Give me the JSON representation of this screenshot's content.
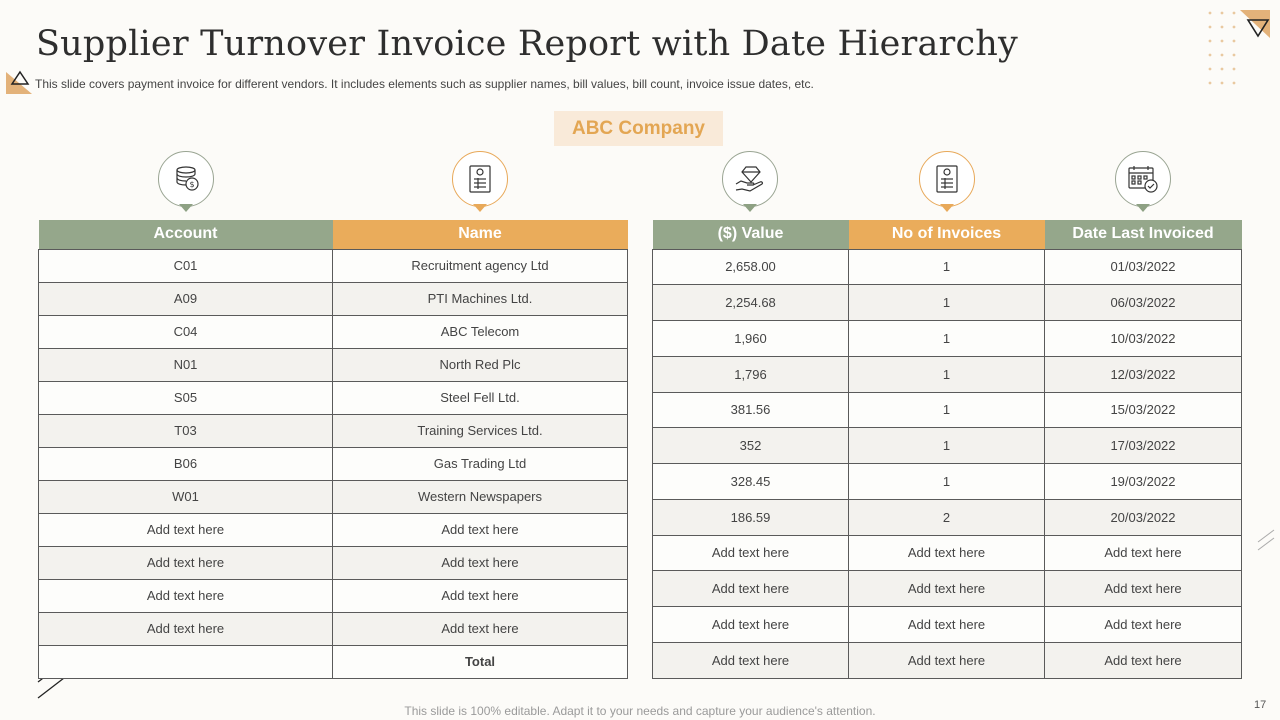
{
  "header": {
    "title": "Supplier Turnover Invoice Report with Date Hierarchy",
    "subtitle": "This slide covers payment invoice for different vendors. It includes elements such as supplier names, bill values, bill count, invoice issue dates, etc."
  },
  "company": "ABC Company",
  "icons": [
    "coins-dollar-icon",
    "invoice-document-icon",
    "hand-diamond-icon",
    "invoice-list-icon",
    "calendar-check-icon"
  ],
  "colors": {
    "green": "#95a78b",
    "orange": "#eaac5b",
    "company_bg": "#f9ead9",
    "company_text": "#e3a653"
  },
  "left_table": {
    "headers": [
      "Account",
      "Name"
    ],
    "rows": [
      [
        "C01",
        "Recruitment agency Ltd"
      ],
      [
        "A09",
        "PTI Machines Ltd."
      ],
      [
        "C04",
        "ABC Telecom"
      ],
      [
        "N01",
        "North Red Plc"
      ],
      [
        "S05",
        "Steel Fell Ltd."
      ],
      [
        "T03",
        "Training  Services Ltd."
      ],
      [
        "B06",
        "Gas Trading  Ltd"
      ],
      [
        "W01",
        "Western Newspapers"
      ],
      [
        "Add text here",
        "Add text here"
      ],
      [
        "Add text here",
        "Add text here"
      ],
      [
        "Add text here",
        "Add text here"
      ],
      [
        "Add text here",
        "Add text here"
      ]
    ],
    "total_label": "Total"
  },
  "right_table": {
    "headers": [
      "($) Value",
      "No of Invoices",
      "Date Last Invoiced"
    ],
    "rows": [
      [
        "2,658.00",
        "1",
        "01/03/2022"
      ],
      [
        "2,254.68",
        "1",
        "06/03/2022"
      ],
      [
        "1,960",
        "1",
        "10/03/2022"
      ],
      [
        "1,796",
        "1",
        "12/03/2022"
      ],
      [
        "381.56",
        "1",
        "15/03/2022"
      ],
      [
        "352",
        "1",
        "17/03/2022"
      ],
      [
        "328.45",
        "1",
        "19/03/2022"
      ],
      [
        "186.59",
        "2",
        "20/03/2022"
      ],
      [
        "Add text here",
        "Add text here",
        "Add text here"
      ],
      [
        "Add text here",
        "Add text here",
        "Add text here"
      ],
      [
        "Add text here",
        "Add text here",
        "Add text here"
      ],
      [
        "Add text here",
        "Add text here",
        "Add text here"
      ]
    ]
  },
  "footer": "This slide is 100% editable. Adapt it to your needs and capture your audience's attention.",
  "page_number": "17"
}
